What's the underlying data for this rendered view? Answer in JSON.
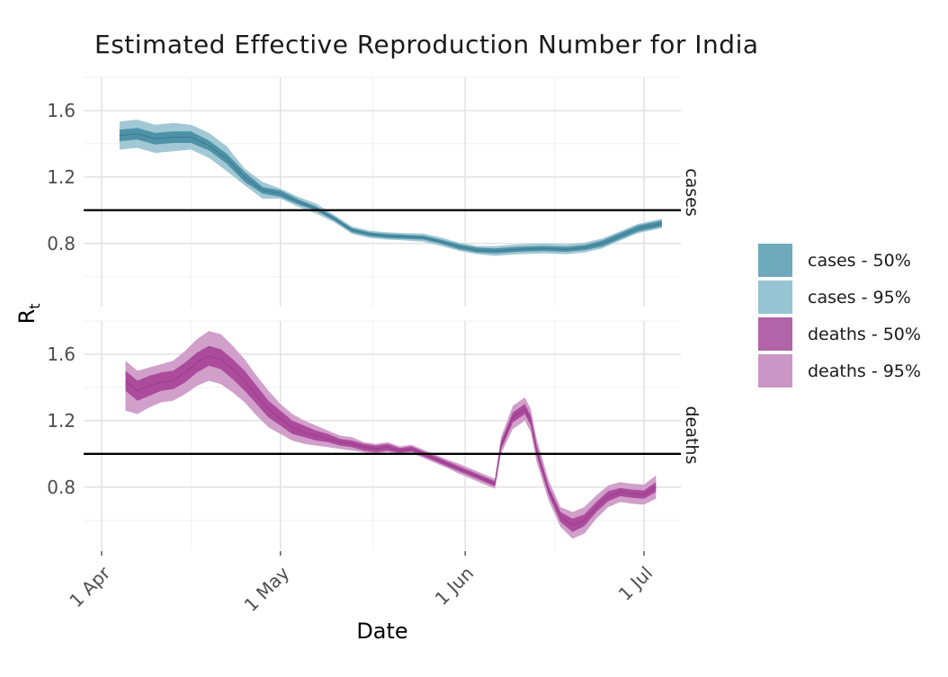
{
  "title": "Estimated Effective Reproduction Number for India",
  "x_axis": {
    "label": "Date",
    "ticks": [
      "1 Apr",
      "1 May",
      "1 Jun",
      "1 Jul"
    ]
  },
  "y_axis": {
    "label": "R",
    "label_sub": "t",
    "ticks": [
      "1.6",
      "1.2",
      "0.8"
    ]
  },
  "legend": {
    "items": [
      {
        "label": "cases - 50%",
        "color": "#6FA9BC"
      },
      {
        "label": "cases - 95%",
        "color": "#97C4D2"
      },
      {
        "label": "deaths - 50%",
        "color": "#B164A8"
      },
      {
        "label": "deaths - 95%",
        "color": "#CA96C5"
      }
    ]
  },
  "chart_data": {
    "type": "area",
    "title": "Estimated Effective Reproduction Number for India",
    "xlabel": "Date",
    "ylabel": "Rt",
    "x_unit": "days since 1 Apr",
    "x_major_ticks": [
      {
        "day": 0,
        "label": "1 Apr"
      },
      {
        "day": 30,
        "label": "1 May"
      },
      {
        "day": 61,
        "label": "1 Jun"
      },
      {
        "day": 91,
        "label": "1 Jul"
      }
    ],
    "x_minor_days": [
      15,
      45.5,
      76
    ],
    "ylim": [
      0.42,
      1.8
    ],
    "y_major": [
      1.6,
      1.2,
      0.8
    ],
    "y_minor": [
      1.8,
      1.4,
      1.0,
      0.6
    ],
    "reference_line": 1.0,
    "grid": true,
    "legend_position": "right",
    "facets": [
      {
        "name": "cases",
        "colors": {
          "band50": "#4E92A8",
          "band95": "#A2C8D5",
          "median": "#417E92"
        },
        "days": [
          3,
          6,
          9,
          12,
          15,
          18,
          21,
          24,
          27,
          30,
          33,
          36,
          39,
          42,
          45,
          48,
          51,
          54,
          57,
          60,
          63,
          66,
          70,
          74,
          78,
          81,
          84,
          87,
          90,
          94
        ],
        "median": [
          1.45,
          1.46,
          1.43,
          1.44,
          1.44,
          1.39,
          1.31,
          1.2,
          1.12,
          1.1,
          1.05,
          1.01,
          0.95,
          0.88,
          0.855,
          0.845,
          0.84,
          0.835,
          0.81,
          0.78,
          0.76,
          0.755,
          0.765,
          0.77,
          0.765,
          0.775,
          0.8,
          0.845,
          0.89,
          0.92
        ],
        "lower50": [
          1.415,
          1.425,
          1.395,
          1.405,
          1.405,
          1.36,
          1.28,
          1.17,
          1.1,
          1.08,
          1.035,
          0.998,
          0.938,
          0.868,
          0.843,
          0.833,
          0.828,
          0.823,
          0.798,
          0.765,
          0.745,
          0.74,
          0.75,
          0.755,
          0.75,
          0.76,
          0.782,
          0.827,
          0.872,
          0.902
        ],
        "upper50": [
          1.485,
          1.495,
          1.465,
          1.475,
          1.475,
          1.42,
          1.34,
          1.23,
          1.14,
          1.12,
          1.065,
          1.022,
          0.962,
          0.892,
          0.867,
          0.857,
          0.852,
          0.847,
          0.822,
          0.795,
          0.775,
          0.77,
          0.78,
          0.785,
          0.78,
          0.79,
          0.818,
          0.863,
          0.908,
          0.938
        ],
        "lower95": [
          1.365,
          1.375,
          1.345,
          1.355,
          1.365,
          1.315,
          1.235,
          1.15,
          1.07,
          1.07,
          1.02,
          0.98,
          0.928,
          0.858,
          0.833,
          0.823,
          0.818,
          0.81,
          0.785,
          0.755,
          0.735,
          0.725,
          0.735,
          0.74,
          0.735,
          0.745,
          0.77,
          0.817,
          0.862,
          0.892
        ],
        "upper95": [
          1.535,
          1.545,
          1.515,
          1.525,
          1.515,
          1.465,
          1.385,
          1.25,
          1.17,
          1.13,
          1.08,
          1.04,
          0.972,
          0.902,
          0.877,
          0.867,
          0.862,
          0.86,
          0.835,
          0.805,
          0.785,
          0.785,
          0.795,
          0.8,
          0.795,
          0.805,
          0.83,
          0.873,
          0.918,
          0.948
        ]
      },
      {
        "name": "deaths",
        "colors": {
          "band50": "#AC4B9C",
          "band95": "#D09FCA",
          "median": "#9C3F8E"
        },
        "days": [
          4,
          6,
          8,
          10,
          12,
          14,
          16,
          18,
          20,
          22,
          24,
          26,
          28,
          30,
          32,
          34,
          36,
          38,
          40,
          42,
          44,
          46,
          48,
          50,
          52,
          54,
          56,
          58,
          60,
          62,
          64,
          66,
          67,
          69,
          71,
          72,
          73,
          75,
          77,
          79,
          81,
          83,
          85,
          87,
          89,
          91,
          93
        ],
        "median": [
          1.44,
          1.38,
          1.41,
          1.43,
          1.44,
          1.49,
          1.55,
          1.59,
          1.57,
          1.51,
          1.44,
          1.35,
          1.27,
          1.21,
          1.16,
          1.13,
          1.11,
          1.09,
          1.07,
          1.06,
          1.04,
          1.03,
          1.04,
          1.02,
          1.03,
          1.0,
          0.97,
          0.94,
          0.91,
          0.88,
          0.85,
          0.82,
          1.05,
          1.22,
          1.27,
          1.2,
          1.02,
          0.78,
          0.62,
          0.57,
          0.6,
          0.68,
          0.745,
          0.77,
          0.76,
          0.755,
          0.8
        ],
        "lower50": [
          1.38,
          1.32,
          1.35,
          1.38,
          1.39,
          1.43,
          1.49,
          1.53,
          1.51,
          1.45,
          1.38,
          1.3,
          1.22,
          1.17,
          1.12,
          1.1,
          1.08,
          1.07,
          1.05,
          1.04,
          1.02,
          1.01,
          1.02,
          1.005,
          1.015,
          0.985,
          0.955,
          0.925,
          0.895,
          0.865,
          0.835,
          0.805,
          1.025,
          1.19,
          1.24,
          1.17,
          0.99,
          0.755,
          0.59,
          0.53,
          0.565,
          0.65,
          0.715,
          0.745,
          0.735,
          0.73,
          0.77
        ],
        "upper50": [
          1.5,
          1.44,
          1.47,
          1.49,
          1.5,
          1.55,
          1.61,
          1.65,
          1.63,
          1.57,
          1.5,
          1.41,
          1.32,
          1.26,
          1.2,
          1.17,
          1.14,
          1.12,
          1.09,
          1.08,
          1.06,
          1.05,
          1.06,
          1.035,
          1.045,
          1.015,
          0.985,
          0.955,
          0.925,
          0.895,
          0.865,
          0.835,
          1.075,
          1.25,
          1.3,
          1.23,
          1.05,
          0.805,
          0.65,
          0.61,
          0.635,
          0.71,
          0.775,
          0.795,
          0.785,
          0.78,
          0.83
        ],
        "lower95": [
          1.26,
          1.24,
          1.28,
          1.31,
          1.32,
          1.36,
          1.41,
          1.44,
          1.42,
          1.37,
          1.31,
          1.23,
          1.16,
          1.12,
          1.08,
          1.06,
          1.05,
          1.04,
          1.03,
          1.02,
          1.01,
          1.0,
          1.01,
          0.995,
          1.005,
          0.975,
          0.945,
          0.915,
          0.88,
          0.85,
          0.82,
          0.79,
          1.0,
          1.15,
          1.2,
          1.13,
          0.95,
          0.72,
          0.56,
          0.49,
          0.52,
          0.61,
          0.68,
          0.71,
          0.7,
          0.695,
          0.73
        ],
        "upper95": [
          1.56,
          1.5,
          1.52,
          1.54,
          1.56,
          1.62,
          1.69,
          1.74,
          1.72,
          1.65,
          1.57,
          1.47,
          1.38,
          1.3,
          1.24,
          1.2,
          1.17,
          1.14,
          1.11,
          1.1,
          1.07,
          1.06,
          1.07,
          1.045,
          1.055,
          1.025,
          0.995,
          0.965,
          0.94,
          0.91,
          0.88,
          0.85,
          1.1,
          1.29,
          1.34,
          1.27,
          1.09,
          0.84,
          0.68,
          0.65,
          0.68,
          0.75,
          0.81,
          0.83,
          0.82,
          0.815,
          0.87
        ]
      }
    ]
  }
}
